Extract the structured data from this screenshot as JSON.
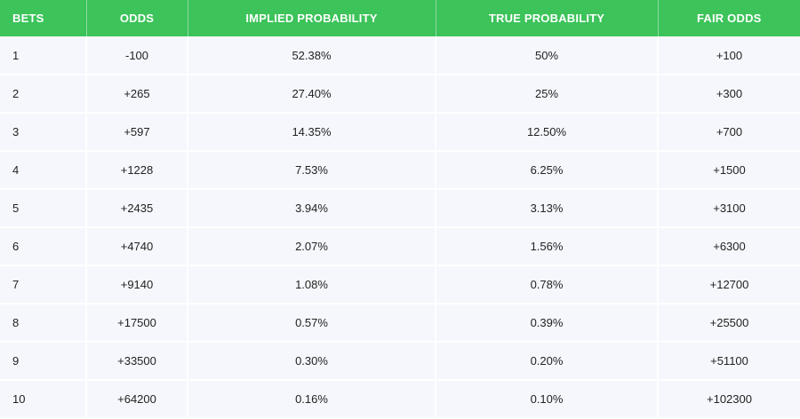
{
  "table": {
    "headers": [
      "BETS",
      "ODDS",
      "IMPLIED PROBABILITY",
      "TRUE PROBABILITY",
      "FAIR ODDS"
    ],
    "rows": [
      [
        "1",
        "-100",
        "52.38%",
        "50%",
        "+100"
      ],
      [
        "2",
        "+265",
        "27.40%",
        "25%",
        "+300"
      ],
      [
        "3",
        "+597",
        "14.35%",
        "12.50%",
        "+700"
      ],
      [
        "4",
        "+1228",
        "7.53%",
        "6.25%",
        "+1500"
      ],
      [
        "5",
        "+2435",
        "3.94%",
        "3.13%",
        "+3100"
      ],
      [
        "6",
        "+4740",
        "2.07%",
        "1.56%",
        "+6300"
      ],
      [
        "7",
        "+9140",
        "1.08%",
        "0.78%",
        "+12700"
      ],
      [
        "8",
        "+17500",
        "0.57%",
        "0.39%",
        "+25500"
      ],
      [
        "9",
        "+33500",
        "0.30%",
        "0.20%",
        "+51100"
      ],
      [
        "10",
        "+64200",
        "0.16%",
        "0.10%",
        "+102300"
      ]
    ],
    "colors": {
      "header_bg": "#3cc35a",
      "header_text": "#ffffff",
      "row_bg": "#f5f7fc"
    }
  }
}
